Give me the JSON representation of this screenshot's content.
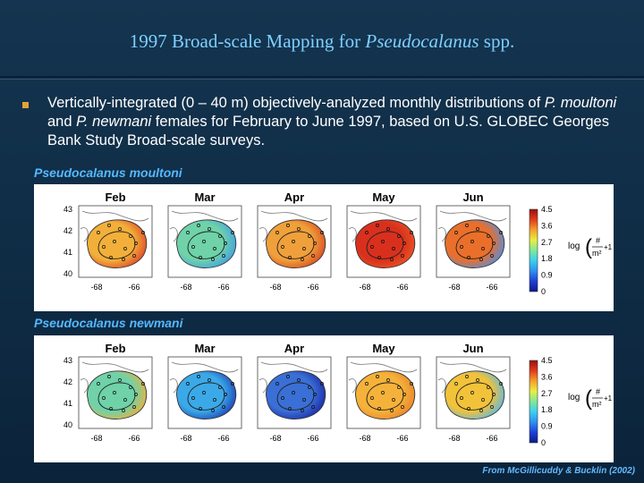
{
  "slide": {
    "title_plain": "1997 Broad-scale Mapping for ",
    "title_italic": "Pseudocalanus",
    "title_suffix": " spp.",
    "bullet": {
      "t1": "Vertically-integrated (0 – 40 m) objectively-analyzed monthly distributions of ",
      "i1": "P. moultoni",
      "t2": " and ",
      "i2": "P. newmani",
      "t3": " females for February to June 1997, based on U.S. GLOBEC Georges Bank Study Broad-scale surveys."
    },
    "credit": "From McGillicuddy & Bucklin (2002)"
  },
  "panels": [
    {
      "label": "Pseudocalanus moultoni",
      "months": [
        "Feb",
        "Mar",
        "Apr",
        "May",
        "Jun"
      ],
      "month_fills": [
        "#f2b03a",
        "#6fd2a8",
        "#f0a03a",
        "#d9301d",
        "#ea6f2a"
      ],
      "month_accents": [
        "#e0452a",
        "#3f9ee8",
        "#d94a22",
        "#ea5523",
        "#4f8fe6"
      ]
    },
    {
      "label": "Pseudocalanus newmani",
      "months": [
        "Feb",
        "Mar",
        "Apr",
        "May",
        "Jun"
      ],
      "month_fills": [
        "#6fd2a8",
        "#3ba9e8",
        "#3a6fd6",
        "#f5b23a",
        "#f2c23a"
      ],
      "month_accents": [
        "#f0b03a",
        "#1d3fb6",
        "#1a28a6",
        "#e8842a",
        "#59b8e8"
      ]
    }
  ],
  "axes": {
    "y_ticks": [
      "43",
      "42",
      "41",
      "40"
    ],
    "x_ticks": [
      "-68",
      "-66"
    ]
  },
  "colorbar": {
    "ticks": [
      "4.5",
      "3.6",
      "2.7",
      "1.8",
      "0.9",
      "0"
    ],
    "colors": [
      "#0a1a8f",
      "#1e3fd6",
      "#2f8ff0",
      "#39d0f0",
      "#7fe89a",
      "#e8ef40",
      "#f5a02a",
      "#e23a1c",
      "#9a0f0f"
    ],
    "label_log": "log",
    "label_num": "#",
    "label_den": "m²",
    "label_plus": "+1"
  }
}
